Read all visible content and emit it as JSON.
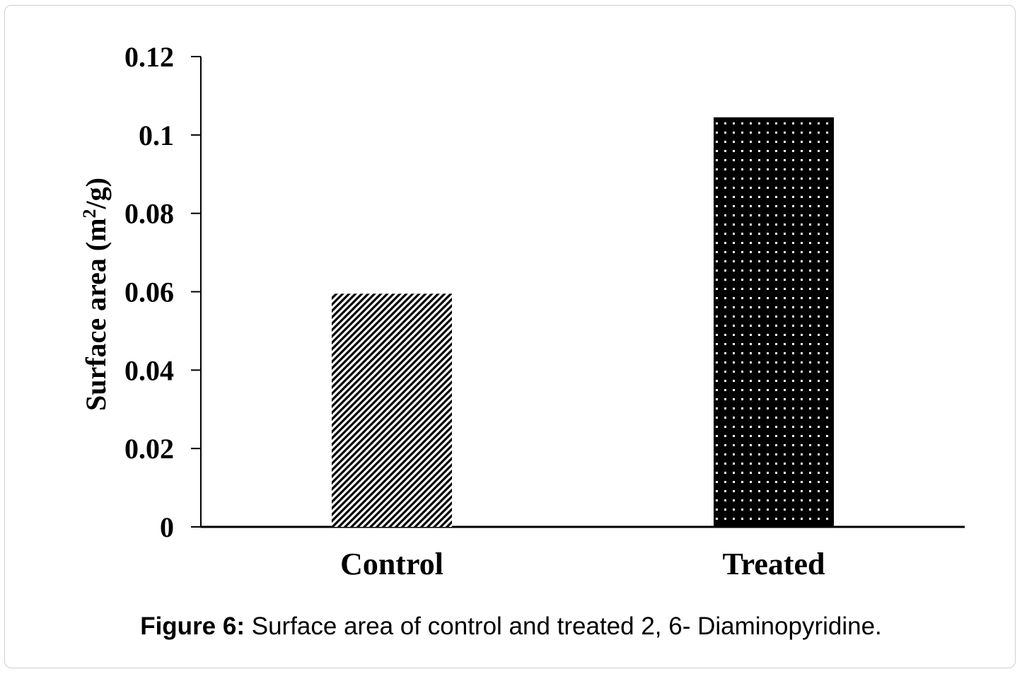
{
  "caption": {
    "label": "Figure 6:",
    "text": " Surface area of control and treated 2, 6- Diaminopyridine."
  },
  "chart_data": {
    "type": "bar",
    "title": "",
    "categories": [
      "Control",
      "Treated"
    ],
    "values": [
      0.0595,
      0.1045
    ],
    "patterns": [
      "diagonal-hatch",
      "dotted-black"
    ],
    "xlabel": "",
    "ylabel_main": "Surface area (m",
    "ylabel_sup": "2",
    "ylabel_end": "/g)",
    "ylim": [
      0,
      0.12
    ],
    "yticks": [
      0,
      0.02,
      0.04,
      0.06,
      0.08,
      0.1,
      0.12
    ],
    "ytick_labels": [
      "0",
      "0.02",
      "0.04",
      "0.06",
      "0.08",
      "0.1",
      "0.12"
    ],
    "grid": false,
    "legend": "none"
  }
}
